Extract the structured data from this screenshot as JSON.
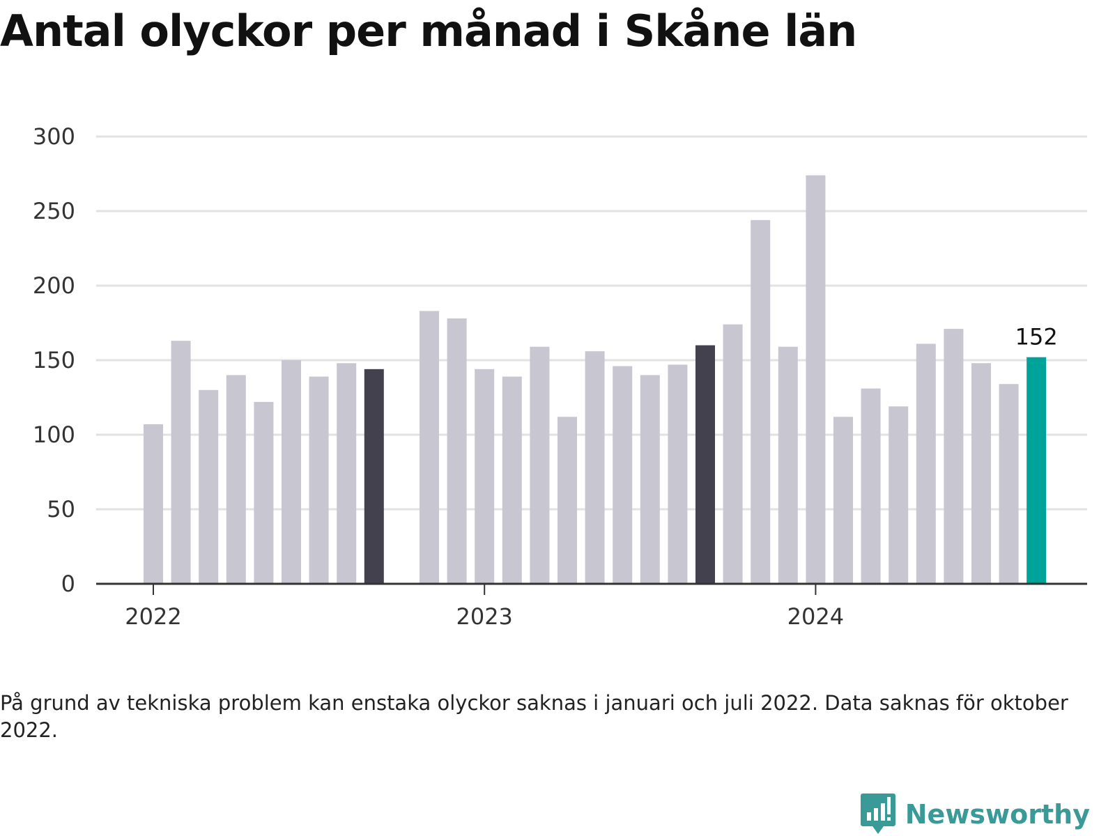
{
  "title": "Antal olyckor per månad i Skåne län",
  "note": "På grund av tekniska problem kan enstaka olyckor saknas i januari och juli 2022. Data saknas för oktober 2022.",
  "brand": {
    "name": "Newsworthy",
    "icon": "newsworthy-logo-icon"
  },
  "colors": {
    "bar": "#c8c7d1",
    "highlight": "#43414d",
    "latest": "#00a39a",
    "grid": "#e2e2e2",
    "axis": "#333333",
    "brand": "#3a9a97"
  },
  "chart_data": {
    "type": "bar",
    "title": "Antal olyckor per månad i Skåne län",
    "xlabel": "",
    "ylabel": "",
    "ylim": [
      0,
      300
    ],
    "yticks": [
      "0",
      "50",
      "100",
      "150",
      "200",
      "250",
      "300"
    ],
    "xticks": [
      {
        "label": "2022",
        "category": "2022-01"
      },
      {
        "label": "2023",
        "category": "2023-01"
      },
      {
        "label": "2024",
        "category": "2024-01"
      }
    ],
    "categories": [
      "2022-01",
      "2022-02",
      "2022-03",
      "2022-04",
      "2022-05",
      "2022-06",
      "2022-07",
      "2022-08",
      "2022-09",
      "2022-10",
      "2022-11",
      "2022-12",
      "2023-01",
      "2023-02",
      "2023-03",
      "2023-04",
      "2023-05",
      "2023-06",
      "2023-07",
      "2023-08",
      "2023-09",
      "2023-10",
      "2023-11",
      "2023-12",
      "2024-01",
      "2024-02",
      "2024-03",
      "2024-04",
      "2024-05",
      "2024-06",
      "2024-07",
      "2024-08",
      "2024-09"
    ],
    "values": [
      107,
      163,
      130,
      140,
      122,
      150,
      139,
      148,
      144,
      null,
      183,
      178,
      144,
      139,
      159,
      112,
      156,
      146,
      140,
      147,
      160,
      174,
      244,
      159,
      274,
      112,
      131,
      119,
      161,
      171,
      148,
      134,
      152
    ],
    "highlighted": [
      "2022-09",
      "2023-09"
    ],
    "latest": "2024-09",
    "annotation": {
      "category": "2024-09",
      "text": "152"
    },
    "grid": true
  }
}
